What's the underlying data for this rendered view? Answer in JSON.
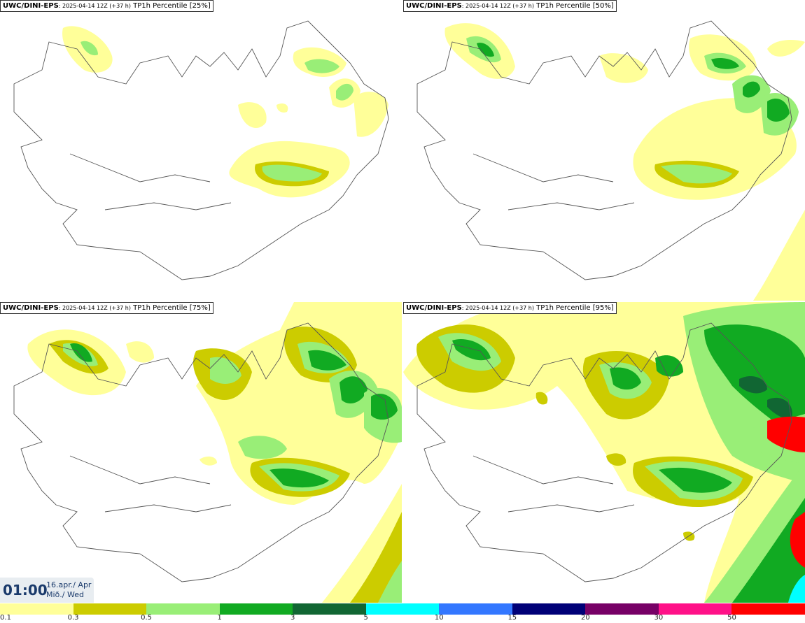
{
  "panels": [
    {
      "model": "UWC/DINI-EPS",
      "run": ": 2025-04-14 12Z (+37 h)",
      "title": " TP1h Percentile [25%]"
    },
    {
      "model": "UWC/DINI-EPS",
      "run": ": 2025-04-14 12Z (+37 h)",
      "title": " TP1h Percentile [50%]"
    },
    {
      "model": "UWC/DINI-EPS",
      "run": ": 2025-04-14 12Z (+37 h)",
      "title": " TP1h Percentile [75%]"
    },
    {
      "model": "UWC/DINI-EPS",
      "run": ": 2025-04-14 12Z (+37 h)",
      "title": " TP1h Percentile [95%]"
    }
  ],
  "valid_time": {
    "time": "01:00",
    "date_line1": "16.apr./ Apr",
    "date_line2": "Mið./ Wed"
  },
  "legend": {
    "ticks": [
      "0.1",
      "0.3",
      "0.5",
      "1",
      "3",
      "5",
      "10",
      "15",
      "20",
      "30",
      "50"
    ],
    "colors": [
      "#ffff99",
      "#cccc00",
      "#99ee77",
      "#11aa22",
      "#116633",
      "#00ffff",
      "#3377ff",
      "#000077",
      "#770066",
      "#ff1188",
      "#ff0000"
    ]
  }
}
